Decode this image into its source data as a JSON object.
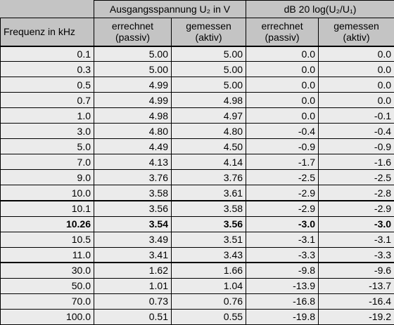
{
  "header": {
    "group_1": "Ausgangsspannung U₂ in V",
    "group_2": "dB  20 log(U₂/U₁)",
    "frequency": "Frequenz in kHz",
    "columns": [
      [
        "errechnet",
        "(passiv)"
      ],
      [
        "gemessen",
        "(aktiv)"
      ],
      [
        "errechnet",
        "(passiv)"
      ],
      [
        "gemessen",
        "(aktiv)"
      ]
    ]
  },
  "table": {
    "rows": [
      [
        "0.1",
        "5.00",
        "5.00",
        "0.0",
        "0.0"
      ],
      [
        "0.3",
        "5.00",
        "5.00",
        "0.0",
        "0.0"
      ],
      [
        "0.5",
        "4.99",
        "5.00",
        "0.0",
        "0.0"
      ],
      [
        "0.7",
        "4.99",
        "4.98",
        "0.0",
        "0.0"
      ],
      [
        "1.0",
        "4.98",
        "4.97",
        "0.0",
        "-0.1"
      ],
      [
        "3.0",
        "4.80",
        "4.80",
        "-0.4",
        "-0.4"
      ],
      [
        "5.0",
        "4.49",
        "4.50",
        "-0.9",
        "-0.9"
      ],
      [
        "7.0",
        "4.13",
        "4.14",
        "-1.7",
        "-1.6"
      ],
      [
        "9.0",
        "3.76",
        "3.76",
        "-2.5",
        "-2.5"
      ],
      [
        "10.0",
        "3.58",
        "3.61",
        "-2.9",
        "-2.8"
      ],
      [
        "10.1",
        "3.56",
        "3.58",
        "-2.9",
        "-2.9"
      ],
      [
        "10.26",
        "3.54",
        "3.56",
        "-3.0",
        "-3.0"
      ],
      [
        "10.5",
        "3.49",
        "3.51",
        "-3.1",
        "-3.1"
      ],
      [
        "11.0",
        "3.41",
        "3.43",
        "-3.3",
        "-3.3"
      ],
      [
        "30.0",
        "1.62",
        "1.66",
        "-9.8",
        "-9.6"
      ],
      [
        "50.0",
        "1.01",
        "1.04",
        "-13.9",
        "-13.7"
      ],
      [
        "70.0",
        "0.73",
        "0.76",
        "-16.8",
        "-16.4"
      ],
      [
        "100.0",
        "0.51",
        "0.55",
        "-19.8",
        "-19.2"
      ]
    ]
  }
}
